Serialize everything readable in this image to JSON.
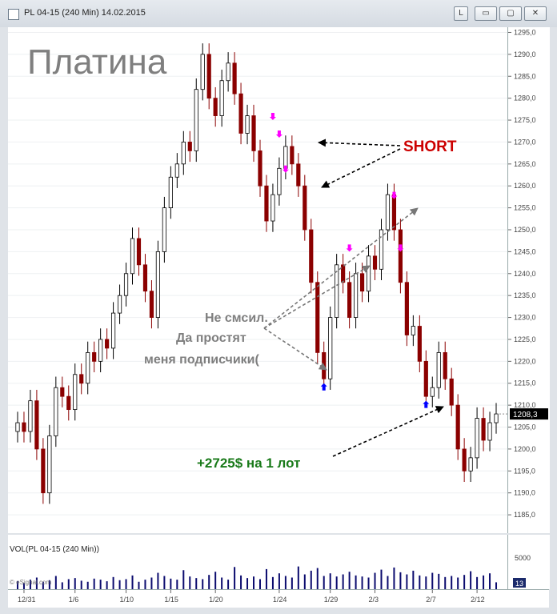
{
  "window": {
    "title": "PL 04-15 (240 Min)  14.02.2015",
    "btn_l": "L",
    "btn_min": "▭",
    "btn_max": "▢",
    "btn_close": "✕"
  },
  "annotations": {
    "heading": "Платина",
    "short": "SHORT",
    "comment": [
      "Не смсил.",
      "Да простят",
      "меня подписчики("
    ],
    "profit": "+2725$ на 1 лот"
  },
  "volume": {
    "label": "VOL(PL 04-15 (240 Min))",
    "tick": "5000",
    "last": "13",
    "watermark": "© eSignal.com"
  },
  "colors": {
    "up": "#000000",
    "down": "#8b0000",
    "arrow_sell": "#ff00ff",
    "arrow_buy": "#0000ff",
    "short": "#cc0000",
    "profit": "#1a7a1a",
    "heading": "#7f7f7f",
    "comment": "#7f7f7f",
    "volbar": "#0b0b6e"
  },
  "chart_data": {
    "type": "candlestick",
    "title": "",
    "ylim": [
      1181,
      1296
    ],
    "yticks": [
      1185,
      1190,
      1195,
      1200,
      1205,
      1210,
      1215,
      1220,
      1225,
      1230,
      1235,
      1240,
      1245,
      1250,
      1255,
      1260,
      1265,
      1270,
      1275,
      1280,
      1285,
      1290,
      1295
    ],
    "last_price": "1208,3",
    "x_labels": [
      "12/31",
      "1/6",
      "1/10",
      "1/15",
      "1/20",
      "1/24",
      "1/29",
      "2/3",
      "2/7",
      "2/12"
    ],
    "close": [
      1206,
      1204,
      1211,
      1200,
      1190,
      1203,
      1214,
      1212,
      1209,
      1217,
      1215,
      1222,
      1220,
      1225,
      1223,
      1231,
      1235,
      1240,
      1248,
      1242,
      1236,
      1230,
      1245,
      1255,
      1262,
      1265,
      1270,
      1268,
      1282,
      1290,
      1280,
      1276,
      1284,
      1288,
      1281,
      1272,
      1276,
      1268,
      1260,
      1252,
      1258,
      1264,
      1269,
      1265,
      1260,
      1250,
      1238,
      1222,
      1216,
      1230,
      1242,
      1238,
      1230,
      1240,
      1236,
      1244,
      1241,
      1250,
      1258,
      1250,
      1238,
      1226,
      1228,
      1220,
      1212,
      1214,
      1222,
      1216,
      1210,
      1200,
      1195,
      1198,
      1207,
      1202,
      1206,
      1208
    ],
    "volume": [
      1500,
      1200,
      1800,
      2200,
      1400,
      1700,
      2500,
      1300,
      1900,
      2100,
      1600,
      1400,
      2000,
      1800,
      1500,
      2300,
      1700,
      1900,
      2600,
      1400,
      1800,
      2200,
      3100,
      2500,
      2000,
      1800,
      3600,
      2400,
      2100,
      1900,
      2700,
      3300,
      2200,
      1800,
      4200,
      2600,
      2100,
      2400,
      1900,
      3800,
      2300,
      3000,
      2500,
      2200,
      4300,
      2800,
      3500,
      4000,
      2500,
      3000,
      2400,
      2800,
      3300,
      2600,
      2400,
      2200,
      3100,
      3700,
      2500,
      4100,
      3200,
      2800,
      3500,
      2600,
      2400,
      3100,
      2900,
      2300,
      2500,
      2200,
      2700,
      3400,
      2300,
      2600,
      3000,
      1300
    ],
    "sell_signals": [
      {
        "i": 40,
        "price": 1275
      },
      {
        "i": 41,
        "price": 1271
      },
      {
        "i": 42,
        "price": 1263
      },
      {
        "i": 52,
        "price": 1245
      },
      {
        "i": 59,
        "price": 1257
      },
      {
        "i": 60,
        "price": 1245
      }
    ],
    "buy_signals": [
      {
        "i": 48,
        "price": 1215
      },
      {
        "i": 64,
        "price": 1211
      }
    ]
  }
}
